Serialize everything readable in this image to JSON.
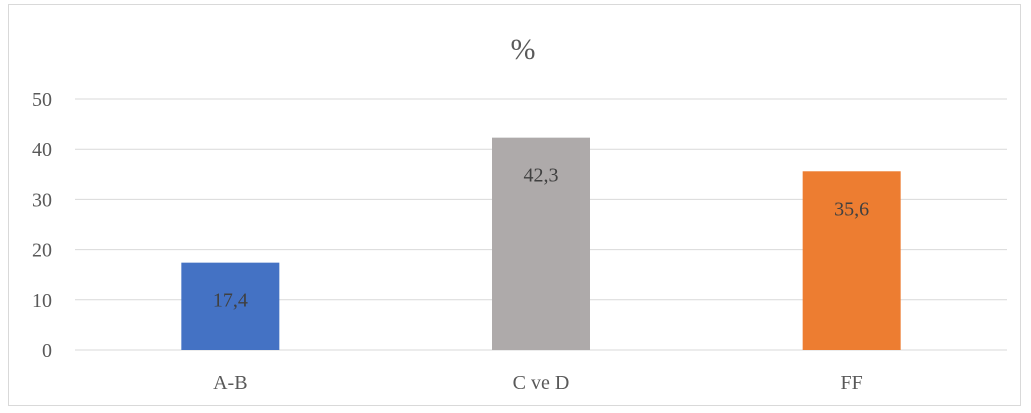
{
  "chart_data": {
    "type": "bar",
    "title": "%",
    "categories": [
      "A-B",
      "C ve D",
      "FF"
    ],
    "values": [
      17.4,
      42.3,
      35.6
    ],
    "data_labels": [
      "17,4",
      "42,3",
      "35,6"
    ],
    "colors": [
      "#4472c4",
      "#aeaaaa",
      "#ed7d31"
    ],
    "yticks": [
      "0",
      "10",
      "20",
      "30",
      "40",
      "50"
    ],
    "ylim": [
      0,
      50
    ],
    "grid": true,
    "legend": "none"
  }
}
